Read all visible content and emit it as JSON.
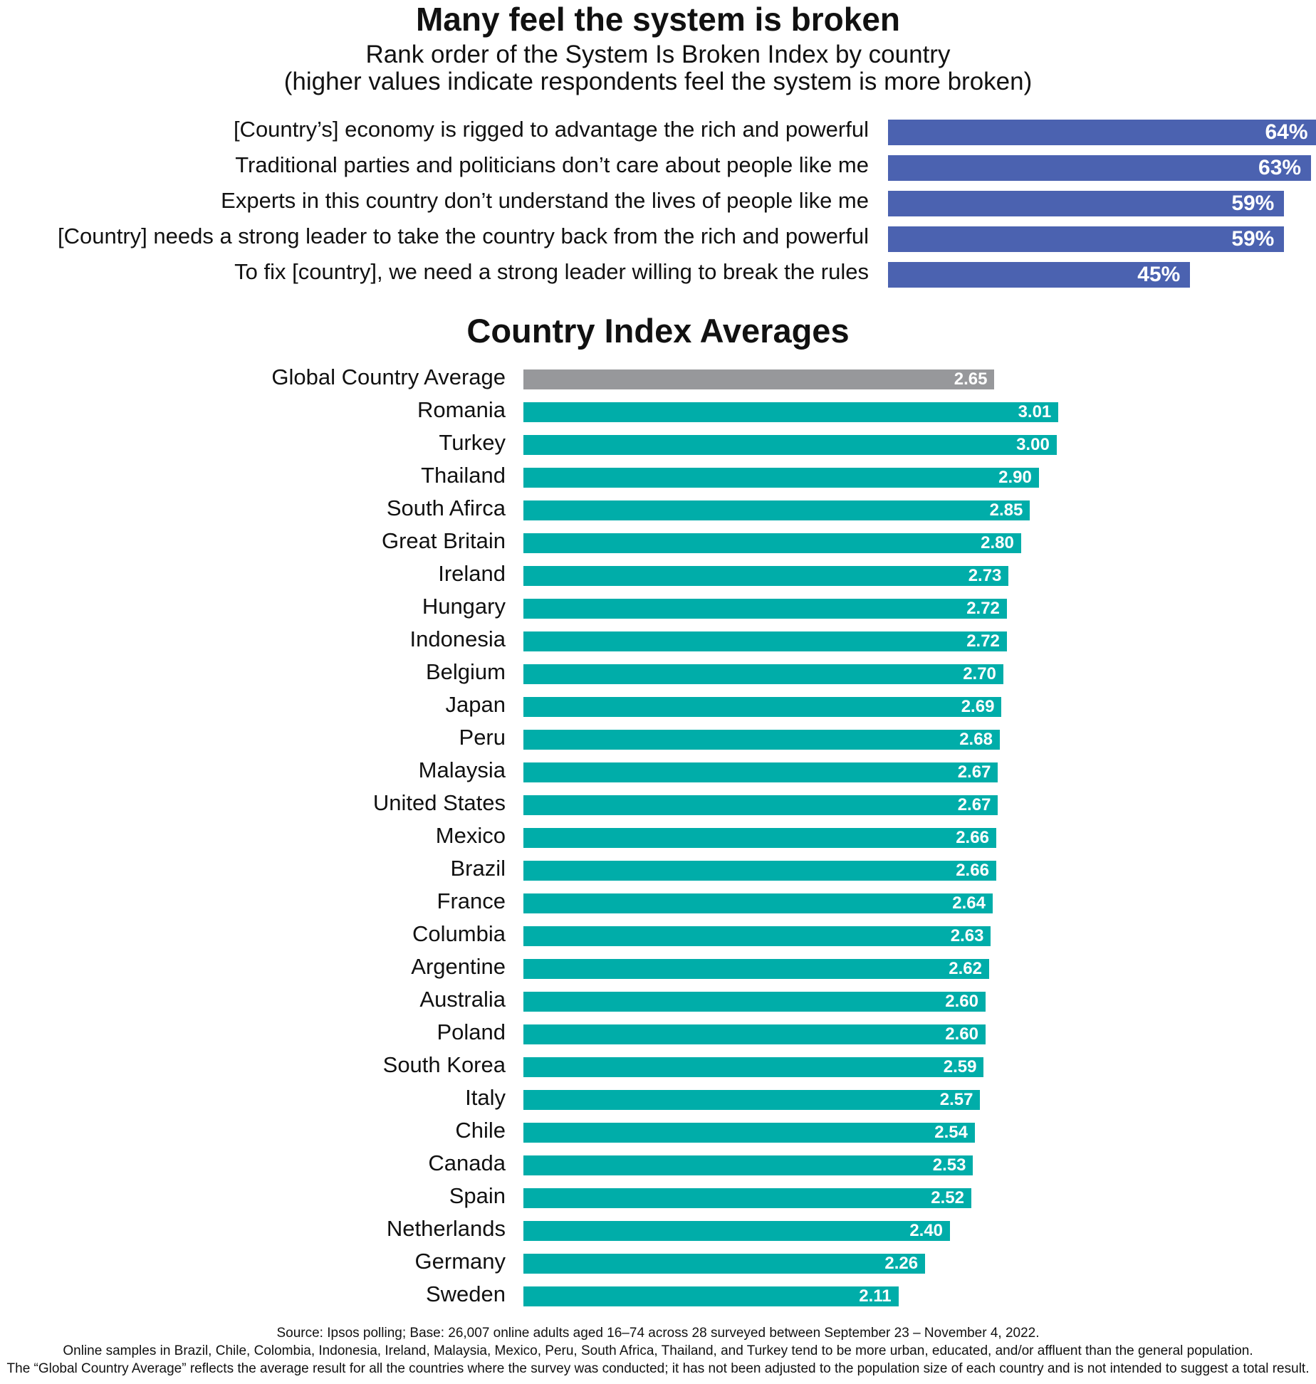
{
  "chart_data": [
    {
      "type": "bar",
      "orientation": "horizontal",
      "title": "Many feel the system is broken",
      "subtitle": [
        "Rank order of the System Is Broken Index by country",
        "(higher values indicate respondents feel the system is more broken)"
      ],
      "categories": [
        "[Country’s] economy is rigged to advantage the rich and powerful",
        "Traditional parties and politicians don’t care about people like me",
        "Experts in this country don’t understand the lives of people like me",
        "[Country] needs a strong leader to take the country back from the rich and powerful",
        "To fix [country], we need a strong leader willing to break the rules"
      ],
      "values": [
        64,
        63,
        59,
        59,
        45
      ],
      "value_labels": [
        "64%",
        "63%",
        "59%",
        "59%",
        "45%"
      ],
      "unit": "%",
      "color": "#4b62b0",
      "grid": false
    },
    {
      "type": "bar",
      "orientation": "horizontal",
      "title": "Country Index Averages",
      "categories": [
        "Global Country Average",
        "Romania",
        "Turkey",
        "Thailand",
        "South Afirca",
        "Great Britain",
        "Ireland",
        "Hungary",
        "Indonesia",
        "Belgium",
        "Japan",
        "Peru",
        "Malaysia",
        "United States",
        "Mexico",
        "Brazil",
        "France",
        "Columbia",
        "Argentine",
        "Australia",
        "Poland",
        "South Korea",
        "Italy",
        "Chile",
        "Canada",
        "Spain",
        "Netherlands",
        "Germany",
        "Sweden"
      ],
      "values": [
        2.65,
        3.01,
        3.0,
        2.9,
        2.85,
        2.8,
        2.73,
        2.72,
        2.72,
        2.7,
        2.69,
        2.68,
        2.67,
        2.67,
        2.66,
        2.66,
        2.64,
        2.63,
        2.62,
        2.6,
        2.6,
        2.59,
        2.57,
        2.54,
        2.53,
        2.52,
        2.4,
        2.26,
        2.11
      ],
      "value_labels": [
        "2.65",
        "3.01",
        "3.00",
        "2.90",
        "2.85",
        "2.80",
        "2.73",
        "2.72",
        "2.72",
        "2.70",
        "2.69",
        "2.68",
        "2.67",
        "2.67",
        "2.66",
        "2.66",
        "2.64",
        "2.63",
        "2.62",
        "2.60",
        "2.60",
        "2.59",
        "2.57",
        "2.54",
        "2.53",
        "2.52",
        "2.40",
        "2.26",
        "2.11"
      ],
      "colors": {
        "average": "#97989b",
        "country": "#00ada9"
      },
      "grid": false
    }
  ],
  "source": [
    "Source: Ipsos polling; Base: 26,007 online adults aged 16–74 across 28 surveyed between September 23 – November 4, 2022.",
    "Online samples in Brazil, Chile, Colombia, Indonesia, Ireland, Malaysia, Mexico, Peru, South Africa, Thailand, and Turkey tend to be more urban, educated, and/or affluent than the general population.",
    "The “Global Country Average” reflects the average result for all the countries where the survey was conducted; it has not been adjusted to the population size of each country and is not intended to suggest a total result."
  ]
}
